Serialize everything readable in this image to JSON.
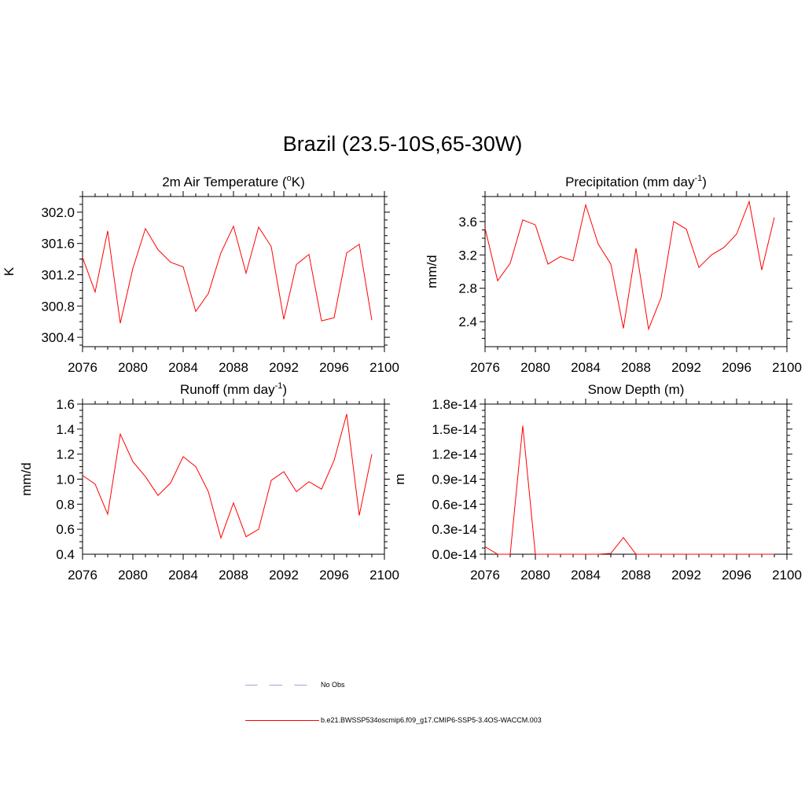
{
  "title": "Brazil (23.5-10S,65-30W)",
  "colors": {
    "line": "#ff0000",
    "obs": "#a3a3d8"
  },
  "legend": {
    "obs_label": "No Obs",
    "model_label": "b.e21.BWSSP534oscmip6.f09_g17.CMIP6-SSP5-3.4OS-WACCM.003"
  },
  "chart_data": [
    {
      "type": "line",
      "title": "2m Air Temperature (",
      "title_sup": "o",
      "title_tail": "K)",
      "ylabel": "K",
      "xlim": [
        2076,
        2100
      ],
      "ylim": [
        300.28,
        302.2
      ],
      "xticks": [
        "2076",
        "2080",
        "2084",
        "2088",
        "2092",
        "2096",
        "2100"
      ],
      "yticks": [
        300.4,
        300.8,
        301.2,
        301.6,
        302.0
      ],
      "ytick_labels": [
        "300.4",
        "300.8",
        "301.2",
        "301.6",
        "302.0"
      ],
      "x": [
        2076,
        2077,
        2078,
        2079,
        2080,
        2081,
        2082,
        2083,
        2084,
        2085,
        2086,
        2087,
        2088,
        2089,
        2090,
        2091,
        2092,
        2093,
        2094,
        2095,
        2096,
        2097,
        2098,
        2099
      ],
      "values": [
        301.42,
        300.98,
        301.76,
        300.58,
        301.28,
        301.79,
        301.52,
        301.36,
        301.3,
        300.73,
        300.96,
        301.48,
        301.82,
        301.22,
        301.81,
        301.56,
        300.63,
        301.33,
        301.46,
        300.61,
        300.65,
        301.48,
        301.59,
        300.62
      ]
    },
    {
      "type": "line",
      "title": "Precipitation (mm day",
      "title_sup": "-1",
      "title_tail": ")",
      "ylabel": "mm/d",
      "xlim": [
        2076,
        2100
      ],
      "ylim": [
        2.1,
        3.9
      ],
      "xticks": [
        "2076",
        "2080",
        "2084",
        "2088",
        "2092",
        "2096",
        "2100"
      ],
      "yticks": [
        2.4,
        2.8,
        3.2,
        3.6
      ],
      "ytick_labels": [
        "2.4",
        "2.8",
        "3.2",
        "3.6"
      ],
      "x": [
        2076,
        2077,
        2078,
        2079,
        2080,
        2081,
        2082,
        2083,
        2084,
        2085,
        2086,
        2087,
        2088,
        2089,
        2090,
        2091,
        2092,
        2093,
        2094,
        2095,
        2096,
        2097,
        2098,
        2099
      ],
      "values": [
        3.52,
        2.89,
        3.1,
        3.62,
        3.56,
        3.09,
        3.18,
        3.13,
        3.8,
        3.33,
        3.09,
        2.32,
        3.28,
        2.31,
        2.69,
        3.6,
        3.51,
        3.05,
        3.2,
        3.29,
        3.45,
        3.84,
        3.02,
        3.65
      ]
    },
    {
      "type": "line",
      "title": "Runoff (mm day",
      "title_sup": "-1",
      "title_tail": ")",
      "ylabel": "mm/d",
      "xlim": [
        2076,
        2100
      ],
      "ylim": [
        0.4,
        1.6
      ],
      "xticks": [
        "2076",
        "2080",
        "2084",
        "2088",
        "2092",
        "2096",
        "2100"
      ],
      "yticks": [
        0.4,
        0.6,
        0.8,
        1.0,
        1.2,
        1.4,
        1.6
      ],
      "ytick_labels": [
        "0.4",
        "0.6",
        "0.8",
        "1.0",
        "1.2",
        "1.4",
        "1.6"
      ],
      "x": [
        2076,
        2077,
        2078,
        2079,
        2080,
        2081,
        2082,
        2083,
        2084,
        2085,
        2086,
        2087,
        2088,
        2089,
        2090,
        2091,
        2092,
        2093,
        2094,
        2095,
        2096,
        2097,
        2098,
        2099
      ],
      "values": [
        1.03,
        0.96,
        0.72,
        1.36,
        1.14,
        1.02,
        0.87,
        0.97,
        1.18,
        1.1,
        0.9,
        0.53,
        0.81,
        0.54,
        0.6,
        0.99,
        1.06,
        0.9,
        0.98,
        0.92,
        1.15,
        1.52,
        0.71,
        1.2
      ]
    },
    {
      "type": "line",
      "title": "Snow Depth (m)",
      "title_sup": "",
      "title_tail": "",
      "ylabel": "m",
      "xlim": [
        2076,
        2100
      ],
      "ylim": [
        0,
        1.8e-14
      ],
      "xticks": [
        "2076",
        "2080",
        "2084",
        "2088",
        "2092",
        "2096",
        "2100"
      ],
      "yticks": [
        0,
        3e-15,
        6e-15,
        9e-15,
        1.2e-14,
        1.5e-14,
        1.8e-14
      ],
      "ytick_labels": [
        "0.0e-14",
        "0.3e-14",
        "0.6e-14",
        "0.9e-14",
        "1.2e-14",
        "1.5e-14",
        "1.8e-14"
      ],
      "x": [
        2076,
        2077,
        2078,
        2079,
        2080,
        2081,
        2082,
        2083,
        2084,
        2085,
        2086,
        2087,
        2088,
        2089,
        2090,
        2091,
        2092,
        2093,
        2094,
        2095,
        2096,
        2097,
        2098,
        2099
      ],
      "values": [
        9e-16,
        0,
        0,
        1.54e-14,
        0,
        0,
        0,
        0,
        0,
        0,
        1e-16,
        2e-15,
        0,
        0,
        0,
        0,
        0,
        0,
        0,
        0,
        0,
        0,
        0,
        0
      ]
    }
  ]
}
